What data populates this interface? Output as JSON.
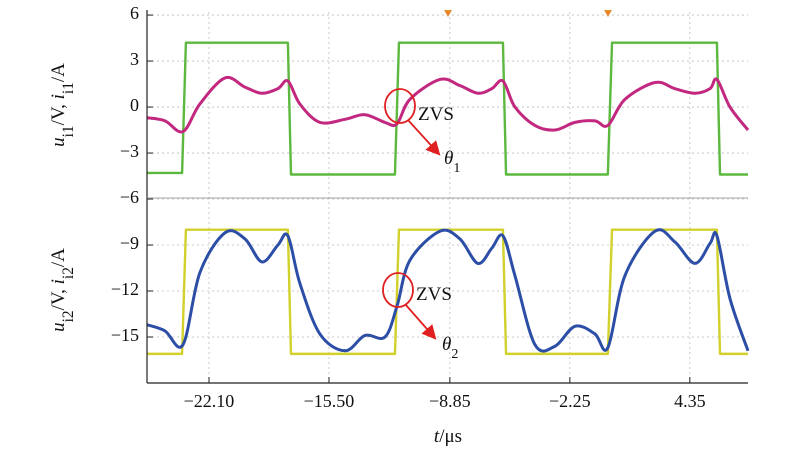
{
  "chart_data": {
    "type": "line",
    "xlabel": [
      {
        "text": "t",
        "italic": true
      },
      {
        "text": "/μs"
      }
    ],
    "ylabels": [
      [
        {
          "text": "u",
          "italic": true
        },
        {
          "text": "i1",
          "sub": true
        },
        {
          "text": "/V, "
        },
        {
          "text": "i",
          "italic": true
        },
        {
          "text": "i1",
          "sub": true
        },
        {
          "text": "/A"
        }
      ],
      [
        {
          "text": "u",
          "italic": true
        },
        {
          "text": "i2",
          "sub": true
        },
        {
          "text": "/V, "
        },
        {
          "text": "i",
          "italic": true
        },
        {
          "text": "i2",
          "sub": true
        },
        {
          "text": "/A"
        }
      ]
    ],
    "xlim": [
      -25.51,
      7.55
    ],
    "ylim": [
      -18,
      6.2
    ],
    "xticks": [
      {
        "value": -22.1,
        "label": "−22.10"
      },
      {
        "value": -15.5,
        "label": "−15.50"
      },
      {
        "value": -8.85,
        "label": "−8.85"
      },
      {
        "value": -2.25,
        "label": "−2.25"
      },
      {
        "value": 4.35,
        "label": "4.35"
      }
    ],
    "yticks": [
      6,
      3,
      0,
      {
        "value": -3,
        "label": "−3"
      },
      {
        "value": -6,
        "label": "−6"
      },
      {
        "value": -9,
        "label": "−9"
      },
      {
        "value": -12,
        "label": "−12"
      },
      {
        "value": -15,
        "label": "−15"
      }
    ],
    "grid": true,
    "series": [
      {
        "color": "#5cb83f",
        "smooth": false,
        "x": [
          -25.51,
          -23.58,
          -23.37,
          -17.76,
          -17.59,
          -11.87,
          -11.65,
          -5.93,
          -5.76,
          -0.16,
          0.07,
          5.84,
          6.01,
          7.55
        ],
        "values": [
          -4.3,
          -4.3,
          4.2,
          4.2,
          -4.4,
          -4.4,
          4.2,
          4.2,
          -4.4,
          -4.4,
          4.2,
          4.2,
          -4.4,
          -4.4
        ]
      },
      {
        "color": "#c2287f",
        "smooth": true,
        "x": [
          -25.51,
          -24.52,
          -23.53,
          -22.6,
          -21.22,
          -20.12,
          -19.19,
          -18.31,
          -17.76,
          -17.1,
          -16.0,
          -14.62,
          -13.52,
          -12.42,
          -11.76,
          -11.05,
          -9.4,
          -8.3,
          -7.31,
          -6.54,
          -5.93,
          -5.27,
          -4.17,
          -3.07,
          -1.97,
          -0.87,
          -0.16,
          0.78,
          2.43,
          3.53,
          4.63,
          5.46,
          5.84,
          6.56,
          7.55
        ],
        "values": [
          -0.7,
          -0.9,
          -1.6,
          0.2,
          1.9,
          1.3,
          0.9,
          1.2,
          1.7,
          0.2,
          -1.0,
          -0.8,
          -0.5,
          -1.0,
          -1.1,
          0.5,
          1.8,
          1.4,
          0.9,
          1.2,
          1.7,
          0.0,
          -1.2,
          -1.5,
          -1.0,
          -0.9,
          -1.2,
          0.5,
          1.6,
          1.2,
          0.9,
          1.2,
          1.8,
          0.0,
          -1.5
        ]
      },
      {
        "color": "#d2d02c",
        "smooth": false,
        "x": [
          -25.51,
          -23.58,
          -23.37,
          -17.76,
          -17.59,
          -11.87,
          -11.65,
          -5.93,
          -5.76,
          -0.16,
          0.07,
          5.84,
          6.01,
          7.55
        ],
        "values": [
          -16.1,
          -16.1,
          -8.0,
          -8.0,
          -16.1,
          -16.1,
          -8.0,
          -8.0,
          -16.1,
          -16.1,
          -8.0,
          -8.0,
          -16.1,
          -16.1
        ]
      },
      {
        "color": "#2c4ea6",
        "smooth": true,
        "x": [
          -25.51,
          -24.52,
          -23.53,
          -22.6,
          -21.22,
          -20.12,
          -19.19,
          -18.31,
          -17.76,
          -17.1,
          -16.0,
          -14.62,
          -13.52,
          -12.42,
          -11.76,
          -11.05,
          -9.4,
          -8.3,
          -7.31,
          -6.54,
          -5.93,
          -5.27,
          -4.17,
          -3.07,
          -1.97,
          -0.87,
          -0.16,
          0.78,
          2.43,
          3.53,
          4.63,
          5.46,
          5.84,
          6.56,
          7.55
        ],
        "values": [
          -14.2,
          -14.6,
          -15.5,
          -10.8,
          -8.2,
          -8.6,
          -10.1,
          -9.0,
          -8.4,
          -11.5,
          -14.8,
          -15.9,
          -14.9,
          -15.0,
          -13.0,
          -10.0,
          -8.1,
          -8.6,
          -10.2,
          -9.2,
          -8.4,
          -11.0,
          -15.5,
          -15.6,
          -14.3,
          -14.8,
          -15.7,
          -11.0,
          -8.1,
          -8.8,
          -10.2,
          -8.9,
          -8.4,
          -12.5,
          -15.9
        ]
      }
    ],
    "annotations": [
      {
        "text": "ZVS"
      },
      [
        {
          "text": "θ",
          "italic": true
        },
        {
          "text": "1",
          "sub": true
        }
      ],
      {
        "text": "ZVS"
      },
      [
        {
          "text": "θ",
          "italic": true
        },
        {
          "text": "2",
          "sub": true
        }
      ]
    ]
  }
}
